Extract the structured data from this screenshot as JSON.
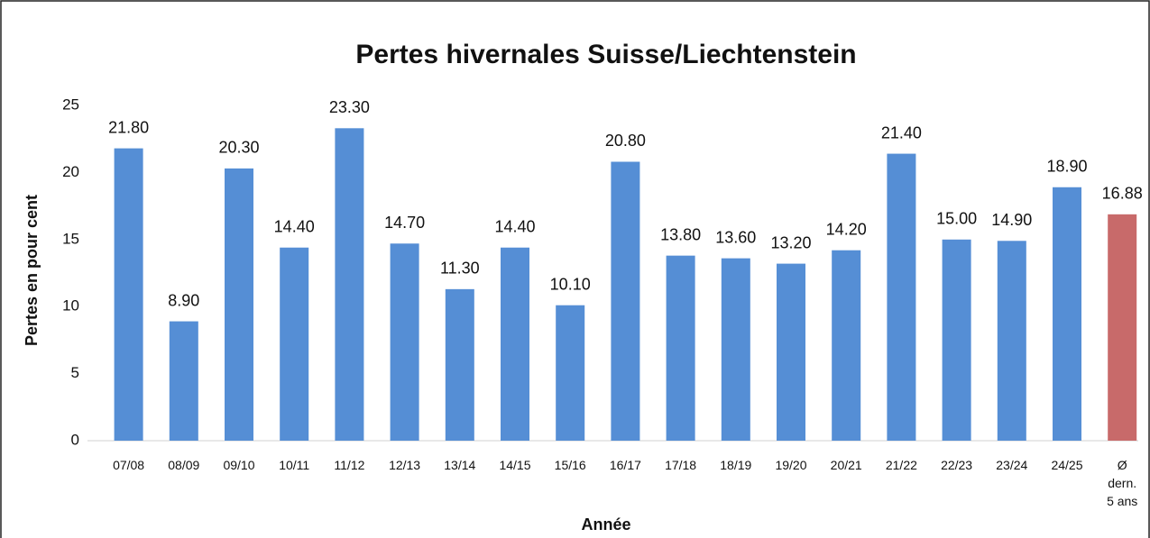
{
  "chart_data": {
    "type": "bar",
    "title": "Pertes hivernales Suisse/Liechtenstein",
    "x_label": "Année",
    "y_label": "Pertes en pour cent",
    "categories": [
      "07/08",
      "08/09",
      "09/10",
      "10/11",
      "11/12",
      "12/13",
      "13/14",
      "14/15",
      "15/16",
      "16/17",
      "17/18",
      "18/19",
      "19/20",
      "20/21",
      "21/22",
      "22/23",
      "23/24",
      "24/25",
      "Ø\ndern.\n5 ans"
    ],
    "values": [
      21.8,
      8.9,
      20.3,
      14.4,
      23.3,
      14.7,
      11.3,
      14.4,
      10.1,
      20.8,
      13.8,
      13.6,
      13.2,
      14.2,
      21.4,
      15.0,
      14.9,
      18.9,
      16.88
    ],
    "value_labels": [
      "21.80",
      "8.90",
      "20.30",
      "14.40",
      "23.30",
      "14.70",
      "11.30",
      "14.40",
      "10.10",
      "20.80",
      "13.80",
      "13.60",
      "13.20",
      "14.20",
      "21.40",
      "15.00",
      "14.90",
      "18.90",
      "16.88"
    ],
    "colors": [
      "#558ed5",
      "#558ed5",
      "#558ed5",
      "#558ed5",
      "#558ed5",
      "#558ed5",
      "#558ed5",
      "#558ed5",
      "#558ed5",
      "#558ed5",
      "#558ed5",
      "#558ed5",
      "#558ed5",
      "#558ed5",
      "#558ed5",
      "#558ed5",
      "#558ed5",
      "#558ed5",
      "#c86a6a"
    ],
    "ylim": [
      0,
      25
    ],
    "yticks": [
      0,
      5,
      10,
      15,
      20,
      25
    ],
    "grid": false
  }
}
